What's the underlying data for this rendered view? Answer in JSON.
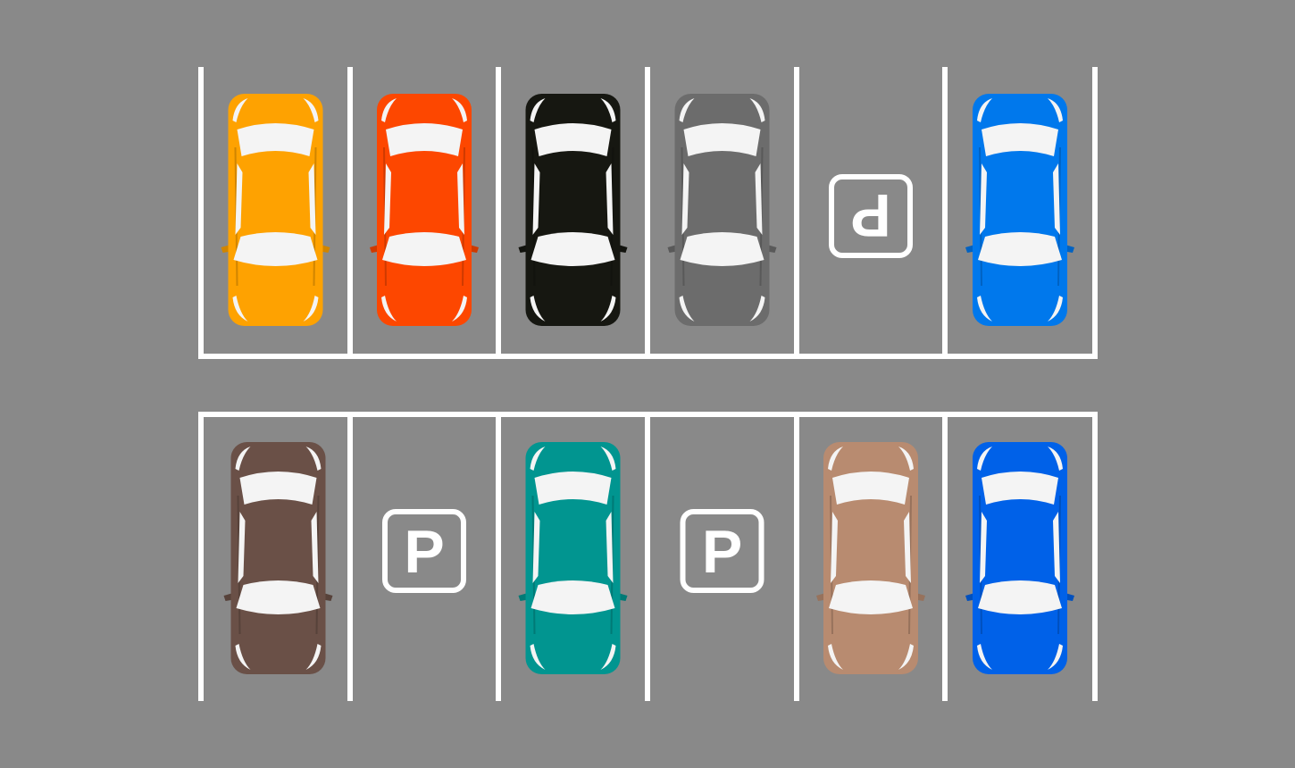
{
  "lot": {
    "background_color": "#898989",
    "line_color": "#ffffff",
    "rows": [
      {
        "name": "top-row",
        "orientation": "cars-face-up",
        "open_side": "top",
        "spots": [
          {
            "occupied": true,
            "color": "#fea201"
          },
          {
            "occupied": true,
            "color": "#fd4700"
          },
          {
            "occupied": true,
            "color": "#161711"
          },
          {
            "occupied": true,
            "color": "#6c6c6c"
          },
          {
            "occupied": false,
            "sign": "P"
          },
          {
            "occupied": true,
            "color": "#0078ec"
          }
        ]
      },
      {
        "name": "bottom-row",
        "orientation": "cars-face-up",
        "open_side": "bottom",
        "spots": [
          {
            "occupied": true,
            "color": "#6a5047"
          },
          {
            "occupied": false,
            "sign": "P"
          },
          {
            "occupied": true,
            "color": "#019590"
          },
          {
            "occupied": false,
            "sign": "P"
          },
          {
            "occupied": true,
            "color": "#b88b70"
          },
          {
            "occupied": true,
            "color": "#0061e8"
          }
        ]
      }
    ]
  }
}
